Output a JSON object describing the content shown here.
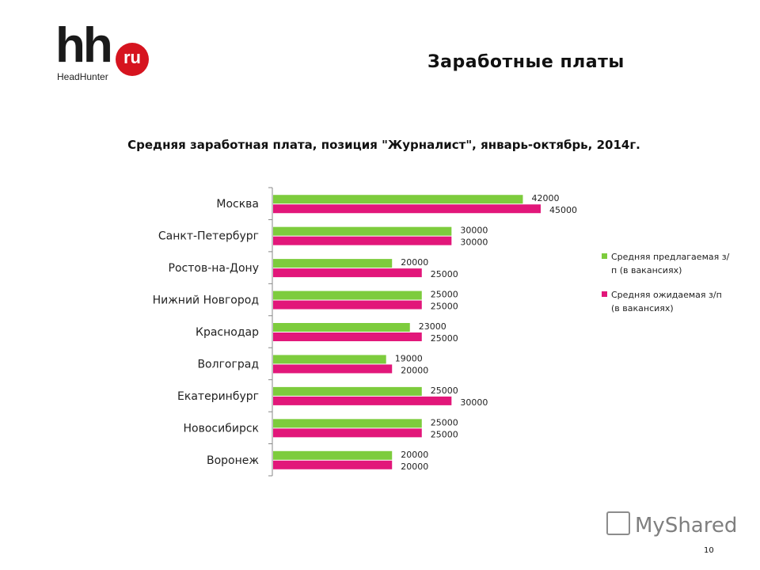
{
  "logo": {
    "brand": "hh",
    "badge": "ru",
    "subtitle": "HeadHunter"
  },
  "slide_title": "Заработные платы",
  "page_number": "10",
  "watermark": "MyShared",
  "chart_data": {
    "type": "bar",
    "orientation": "horizontal",
    "title": "Средняя заработная  плата, позиция \"Журналист\", январь-октябрь, 2014г.",
    "categories": [
      "Москва",
      "Санкт-Петербург",
      "Ростов-на-Дону",
      "Нижний Новгород",
      "Краснодар",
      "Волгоград",
      "Екатеринбург",
      "Новосибирск",
      "Воронеж"
    ],
    "series": [
      {
        "name": "Средняя предлагаемая з/п (в вакансиях)",
        "color": "#7dcc3d",
        "values": [
          42000,
          30000,
          20000,
          25000,
          23000,
          19000,
          25000,
          25000,
          20000
        ]
      },
      {
        "name": "Средняя ожидаемая з/п (в вакансиях)",
        "color": "#e2177a",
        "values": [
          45000,
          30000,
          25000,
          25000,
          25000,
          20000,
          30000,
          25000,
          20000
        ]
      }
    ],
    "xlim": [
      0,
      45000
    ],
    "grid": false,
    "data_labels": true,
    "legend_position": "right"
  }
}
